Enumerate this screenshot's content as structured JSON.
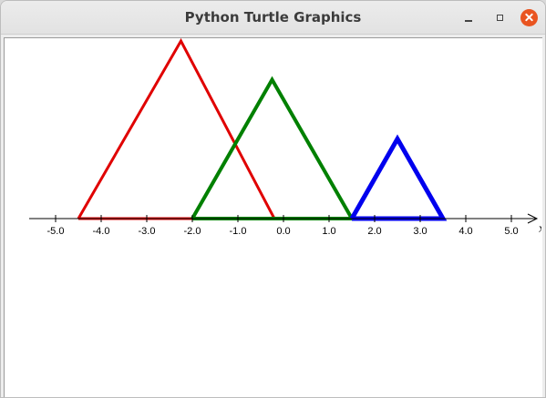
{
  "window": {
    "title": "Python Turtle Graphics",
    "controls": [
      "minimize",
      "maximize",
      "close"
    ]
  },
  "chart_data": {
    "type": "line",
    "axis": {
      "name": "x",
      "tick_labels": [
        "-5.0",
        "-4.0",
        "-3.0",
        "-2.0",
        "-1.0",
        "0.0",
        "1.0",
        "2.0",
        "3.0",
        "4.0",
        "5.0"
      ],
      "tick_values": [
        -5,
        -4,
        -3,
        -2,
        -1,
        0,
        1,
        2,
        3,
        4,
        5
      ],
      "xlim": [
        -5.6,
        5.6
      ]
    },
    "series": [
      {
        "color": "#e00000",
        "points": [
          [
            -4.5,
            0
          ],
          [
            -2.25,
            3.9
          ],
          [
            -0.2,
            0
          ],
          [
            -4.5,
            0
          ]
        ]
      },
      {
        "color": "#008000",
        "points": [
          [
            -2.0,
            0
          ],
          [
            -0.25,
            3.05
          ],
          [
            1.5,
            0
          ],
          [
            -2.0,
            0
          ]
        ]
      },
      {
        "color": "#0000ee",
        "points": [
          [
            1.5,
            0
          ],
          [
            2.5,
            1.75
          ],
          [
            3.5,
            0
          ],
          [
            1.5,
            0
          ]
        ]
      }
    ]
  }
}
